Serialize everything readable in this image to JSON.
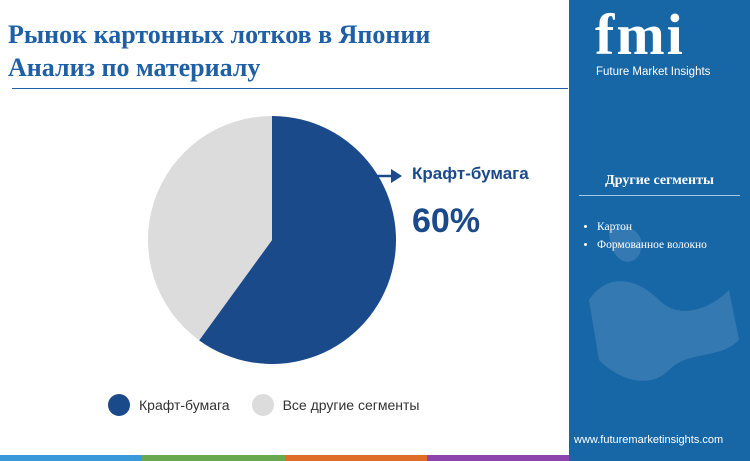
{
  "header": {
    "title_line1": "Рынок картонных лотков в Японии",
    "title_line2": "Анализ по материалу"
  },
  "chart_data": {
    "type": "pie",
    "title": "Рынок картонных лотков в Японии Анализ по материалу",
    "categories": [
      "Крафт-бумага",
      "Все другие сегменты"
    ],
    "values": [
      60,
      40
    ],
    "colors": [
      "#1b4a8a",
      "#dcdcdc"
    ],
    "legend_position": "bottom",
    "annotations": [
      {
        "label": "Крафт-бумага",
        "value": "60%"
      }
    ]
  },
  "callout": {
    "label": "Крафт-бумага",
    "value": "60%"
  },
  "legend": {
    "items": [
      {
        "label": "Крафт-бумага",
        "color": "#1b4a8a"
      },
      {
        "label": "Все другие сегменты",
        "color": "#dcdcdc"
      }
    ]
  },
  "sidebar": {
    "logo": "fmi",
    "logo_subtitle": "Future Market Insights",
    "heading": "Другие сегменты",
    "items": [
      "Картон",
      "Формованное волокно"
    ],
    "website": "www.futuremarketinsights.com"
  },
  "colors": {
    "accent": "#1f5fa6",
    "sidebar_bg": "#1766a6",
    "stripe": [
      "#3a9ad9",
      "#6aa84f",
      "#e06c2a",
      "#8e44ad"
    ]
  }
}
